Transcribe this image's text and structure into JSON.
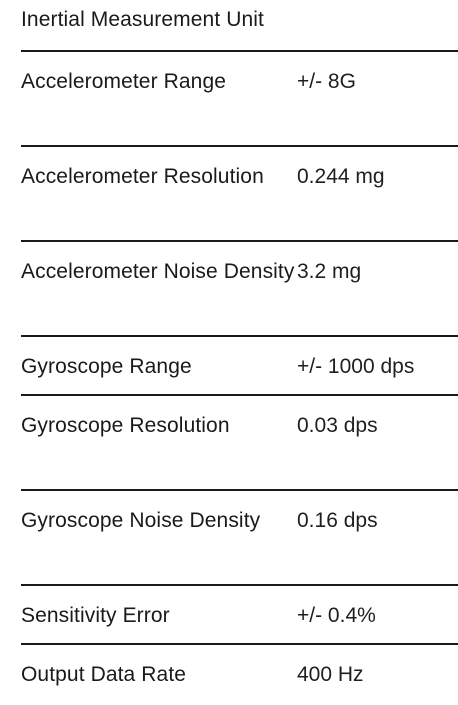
{
  "table": {
    "title": "Inertial Measurement Unit",
    "rows": [
      {
        "label": "Accelerometer Range",
        "value": "+/- 8G"
      },
      {
        "label": "Accelerometer Resolution",
        "value": "0.244 mg"
      },
      {
        "label": "Accelerometer Noise Density",
        "value": "3.2 mg"
      },
      {
        "label": "Gyroscope Range",
        "value": "+/- 1000 dps"
      },
      {
        "label": "Gyroscope Resolution",
        "value": "0.03 dps"
      },
      {
        "label": "Gyroscope Noise Density",
        "value": "0.16 dps"
      },
      {
        "label": "Sensitivity Error",
        "value": "+/- 0.4%"
      },
      {
        "label": "Output Data Rate",
        "value": "400 Hz"
      }
    ]
  }
}
